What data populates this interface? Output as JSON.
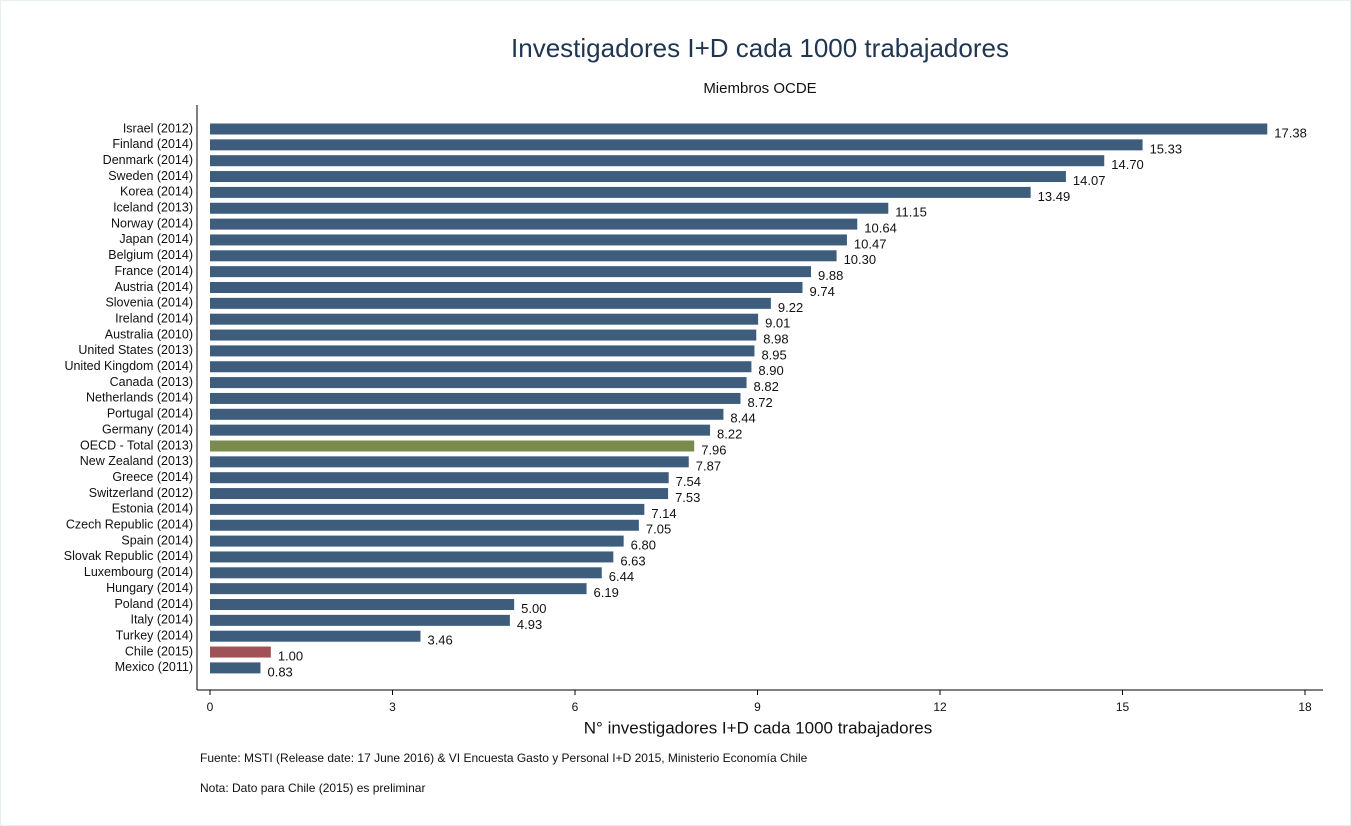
{
  "chart_data": {
    "type": "barh",
    "title": "Investigadores I+D cada 1000 trabajadores",
    "subtitle": "Miembros OCDE",
    "xlabel": "N° investigadores I+D cada 1000 trabajadores",
    "source": "Fuente: MSTI (Release date: 17 June 2016) & VI Encuesta Gasto y Personal I+D 2015, Ministerio Economía Chile",
    "note": "Nota: Dato para Chile (2015) es preliminar",
    "categories": [
      "Israel (2012)",
      "Finland (2014)",
      "Denmark (2014)",
      "Sweden (2014)",
      "Korea (2014)",
      "Iceland (2013)",
      "Norway (2014)",
      "Japan (2014)",
      "Belgium (2014)",
      "France (2014)",
      "Austria (2014)",
      "Slovenia (2014)",
      "Ireland (2014)",
      "Australia (2010)",
      "United States (2013)",
      "United Kingdom (2014)",
      "Canada (2013)",
      "Netherlands (2014)",
      "Portugal (2014)",
      "Germany (2014)",
      "OECD - Total (2013)",
      "New Zealand (2013)",
      "Greece (2014)",
      "Switzerland (2012)",
      "Estonia (2014)",
      "Czech Republic (2014)",
      "Spain (2014)",
      "Slovak Republic (2014)",
      "Luxembourg (2014)",
      "Hungary (2014)",
      "Poland (2014)",
      "Italy (2014)",
      "Turkey (2014)",
      "Chile (2015)",
      "Mexico (2011)"
    ],
    "values": [
      17.38,
      15.33,
      14.7,
      14.07,
      13.49,
      11.15,
      10.64,
      10.47,
      10.3,
      9.88,
      9.74,
      9.22,
      9.01,
      8.98,
      8.95,
      8.9,
      8.82,
      8.72,
      8.44,
      8.22,
      7.96,
      7.87,
      7.54,
      7.53,
      7.14,
      7.05,
      6.8,
      6.63,
      6.44,
      6.19,
      5.0,
      4.93,
      3.46,
      1.0,
      0.83
    ],
    "value_labels": [
      "17.38",
      "15.33",
      "14.70",
      "14.07",
      "13.49",
      "11.15",
      "10.64",
      "10.47",
      "10.30",
      "9.88",
      "9.74",
      "9.22",
      "9.01",
      "8.98",
      "8.95",
      "8.90",
      "8.82",
      "8.72",
      "8.44",
      "8.22",
      "7.96",
      "7.87",
      "7.54",
      "7.53",
      "7.14",
      "7.05",
      "6.80",
      "6.63",
      "6.44",
      "6.19",
      "5.00",
      "4.93",
      "3.46",
      "1.00",
      "0.83"
    ],
    "colors": [
      "#3e5d7c",
      "#3e5d7c",
      "#3e5d7c",
      "#3e5d7c",
      "#3e5d7c",
      "#3e5d7c",
      "#3e5d7c",
      "#3e5d7c",
      "#3e5d7c",
      "#3e5d7c",
      "#3e5d7c",
      "#3e5d7c",
      "#3e5d7c",
      "#3e5d7c",
      "#3e5d7c",
      "#3e5d7c",
      "#3e5d7c",
      "#3e5d7c",
      "#3e5d7c",
      "#3e5d7c",
      "#7a8c4c",
      "#3e5d7c",
      "#3e5d7c",
      "#3e5d7c",
      "#3e5d7c",
      "#3e5d7c",
      "#3e5d7c",
      "#3e5d7c",
      "#3e5d7c",
      "#3e5d7c",
      "#3e5d7c",
      "#3e5d7c",
      "#3e5d7c",
      "#a05256",
      "#3e5d7c"
    ],
    "xlim": [
      0,
      18
    ],
    "xticks": [
      0,
      3,
      6,
      9,
      12,
      15,
      18
    ]
  }
}
